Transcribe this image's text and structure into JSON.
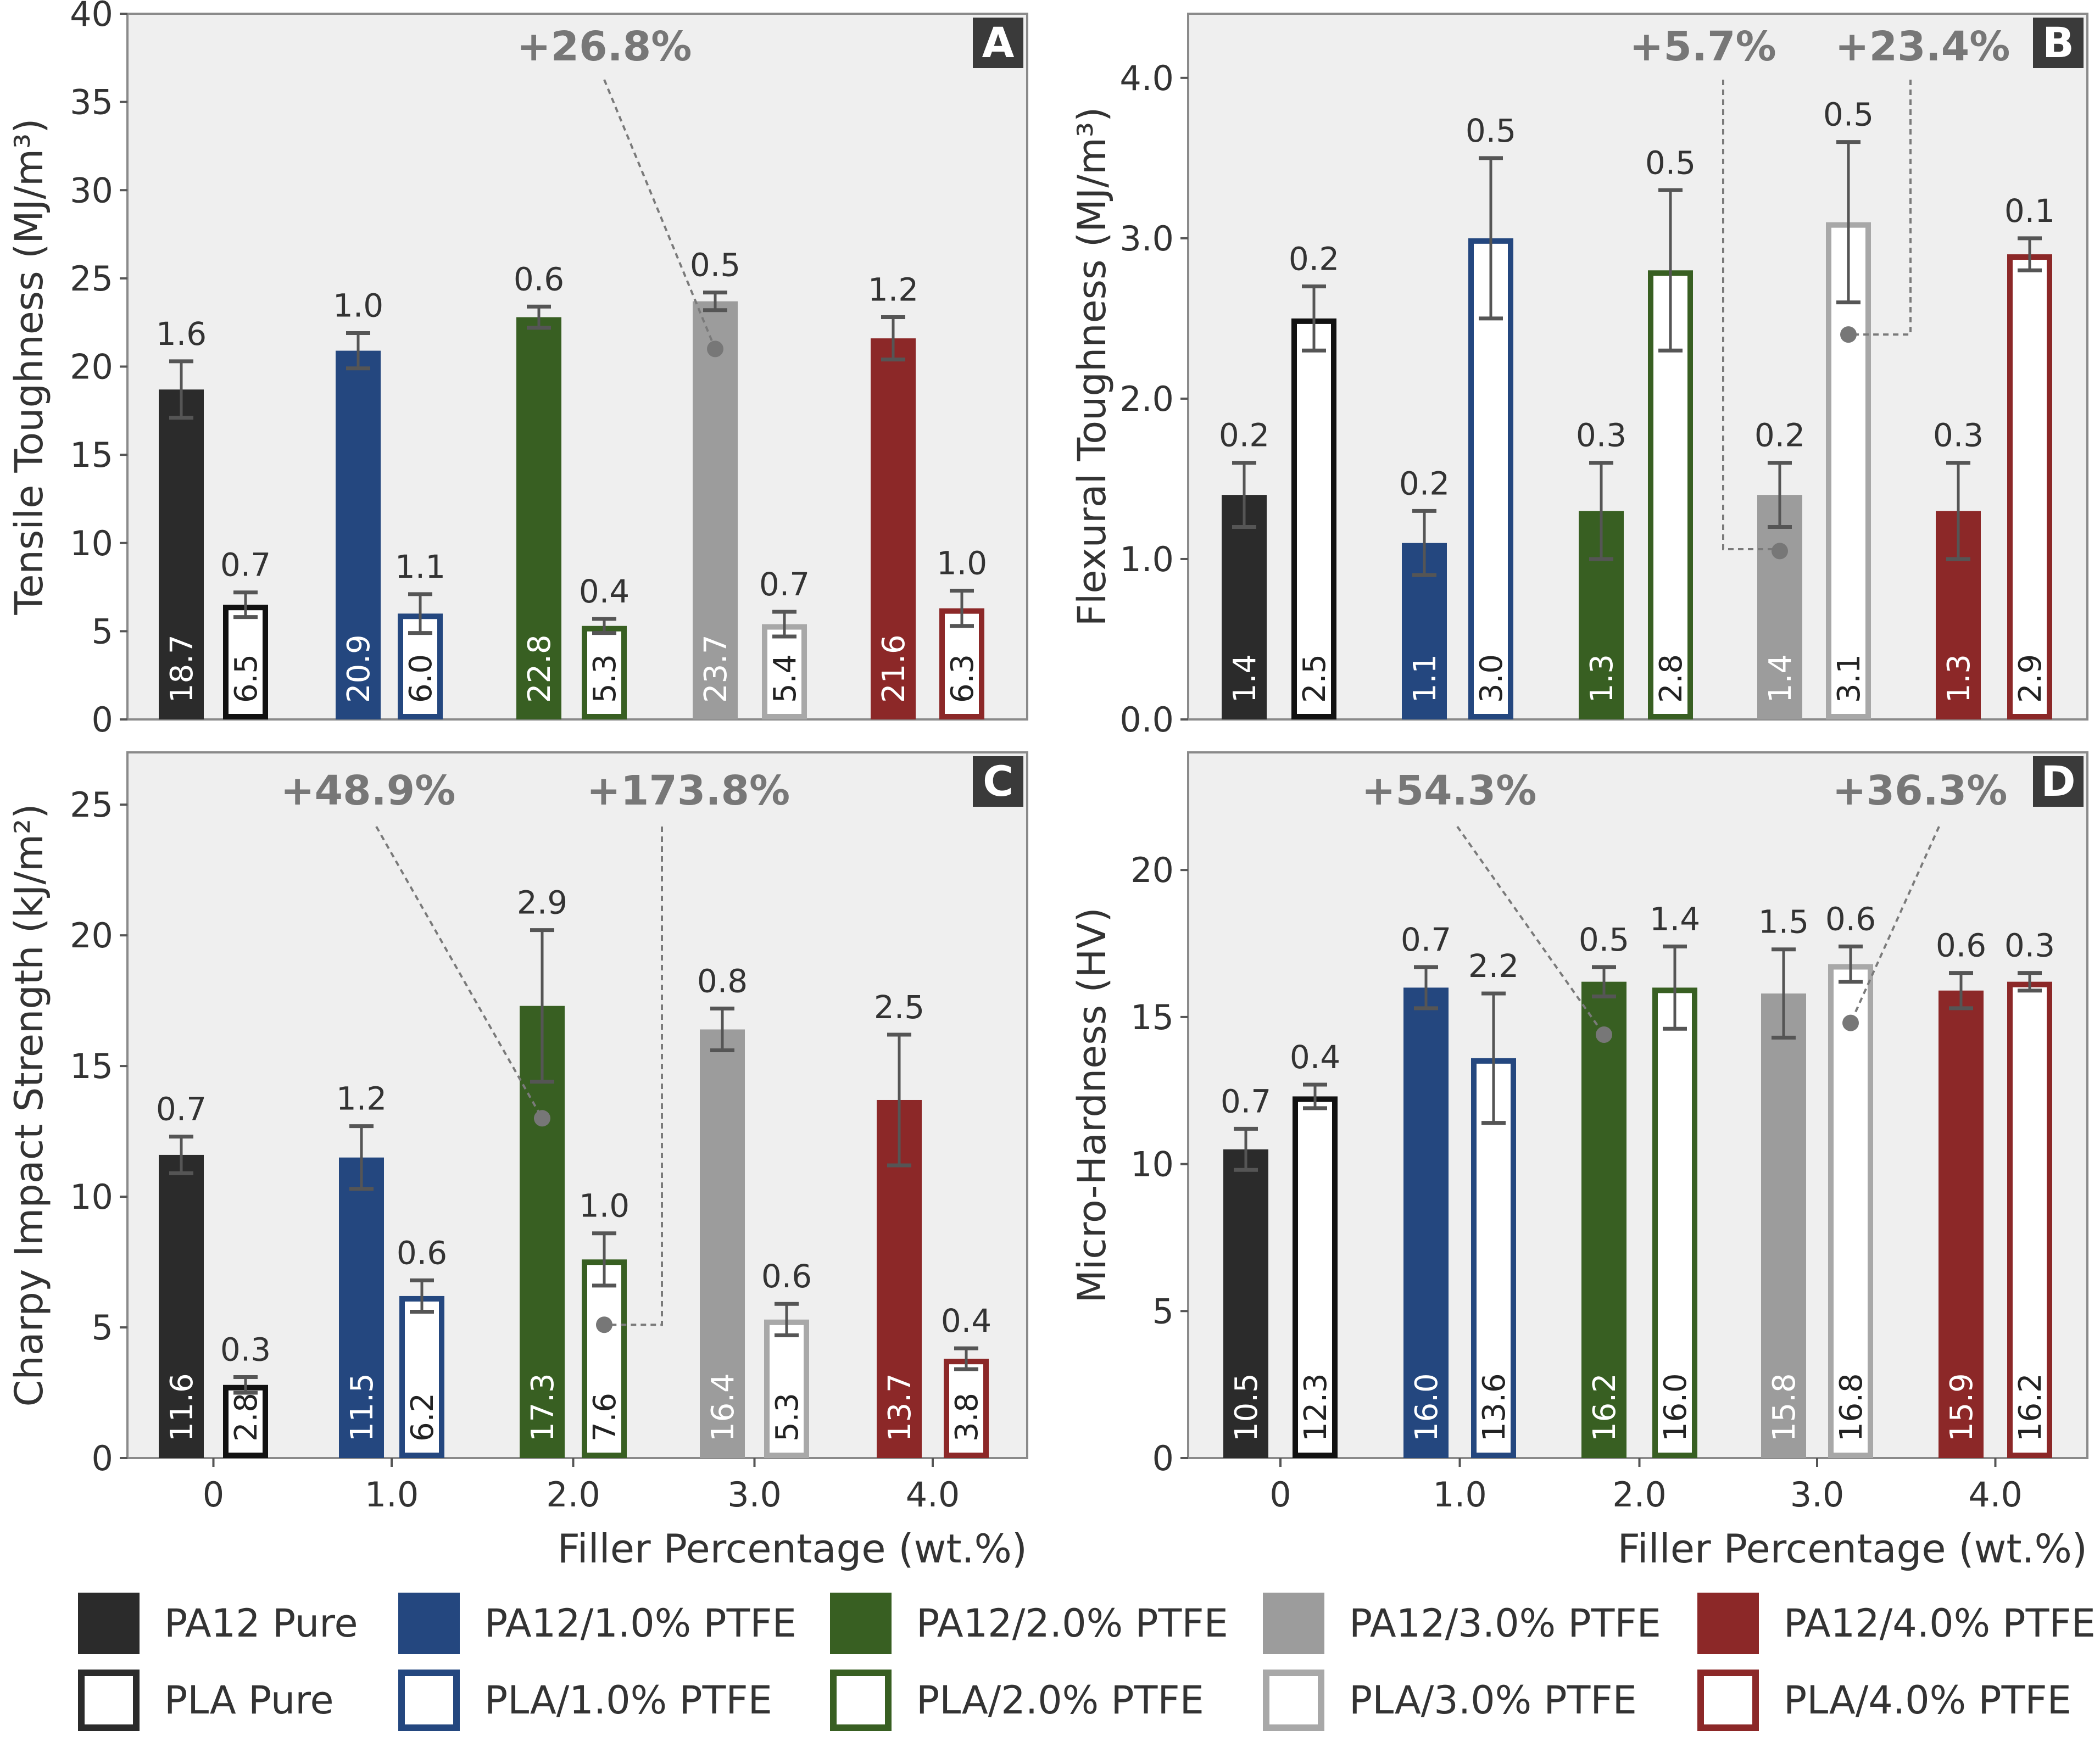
{
  "figure": {
    "x_common_label": "Filler Percentage (wt.%)",
    "legend": [
      {
        "label": "PA12 Pure",
        "style": "filled",
        "color": "#2b2b2b"
      },
      {
        "label": "PA12/1.0% PTFE",
        "style": "filled",
        "color": "#24477f"
      },
      {
        "label": "PA12/2.0% PTFE",
        "style": "filled",
        "color": "#385f22"
      },
      {
        "label": "PA12/3.0% PTFE",
        "style": "filled",
        "color": "#9c9c9c"
      },
      {
        "label": "PA12/4.0% PTFE",
        "style": "filled",
        "color": "#8c2828"
      },
      {
        "label": "PLA Pure",
        "style": "outline",
        "color": "#2b2b2b"
      },
      {
        "label": "PLA/1.0% PTFE",
        "style": "outline",
        "color": "#24477f"
      },
      {
        "label": "PLA/2.0% PTFE",
        "style": "outline",
        "color": "#385f22"
      },
      {
        "label": "PLA/3.0% PTFE",
        "style": "outline",
        "color": "#a8a8a8"
      },
      {
        "label": "PLA/4.0% PTFE",
        "style": "outline",
        "color": "#8c2828"
      }
    ]
  },
  "chart_data": [
    {
      "panel": "A",
      "type": "bar",
      "ylabel": "Tensile Toughness (MJ/m³)",
      "xlabel": "",
      "ylim": [
        0,
        40
      ],
      "yticks": [
        "0",
        "5",
        "10",
        "15",
        "20",
        "25",
        "30",
        "35",
        "40"
      ],
      "categories": [
        "0",
        "1.0",
        "2.0",
        "3.0",
        "4.0"
      ],
      "show_xticks": false,
      "series": [
        {
          "name": "PA12",
          "values": [
            18.7,
            20.9,
            22.8,
            23.7,
            21.6
          ],
          "labels": [
            "18.7",
            "20.9",
            "22.8",
            "23.7",
            "21.6"
          ],
          "errors": [
            1.6,
            1.0,
            0.6,
            0.5,
            1.2
          ],
          "error_labels": [
            "1.6",
            "1.0",
            "0.6",
            "0.5",
            "1.2"
          ]
        },
        {
          "name": "PLA",
          "values": [
            6.5,
            6.0,
            5.3,
            5.4,
            6.3
          ],
          "labels": [
            "6.5",
            "6.0",
            "5.3",
            "5.4",
            "6.3"
          ],
          "errors": [
            0.7,
            1.1,
            0.4,
            0.7,
            1.0
          ],
          "error_labels": [
            "0.7",
            "1.1",
            "0.4",
            "0.7",
            "1.0"
          ]
        }
      ],
      "annotations": [
        {
          "text": "+26.8%",
          "target": {
            "series": 0,
            "category": 3,
            "value": 21
          }
        }
      ]
    },
    {
      "panel": "B",
      "type": "bar",
      "ylabel": "Flexural Toughness (MJ/m³)",
      "xlabel": "",
      "ylim": [
        0,
        4.4
      ],
      "yticks": [
        "0.0",
        "1.0",
        "2.0",
        "3.0",
        "4.0"
      ],
      "categories": [
        "0",
        "1.0",
        "2.0",
        "3.0",
        "4.0"
      ],
      "show_xticks": false,
      "series": [
        {
          "name": "PA12",
          "values": [
            1.4,
            1.1,
            1.3,
            1.4,
            1.3
          ],
          "labels": [
            "1.4",
            "1.1",
            "1.3",
            "1.4",
            "1.3"
          ],
          "errors": [
            0.2,
            0.2,
            0.3,
            0.2,
            0.3
          ],
          "error_labels": [
            "0.2",
            "0.2",
            "0.3",
            "0.2",
            "0.3"
          ]
        },
        {
          "name": "PLA",
          "values": [
            2.5,
            3.0,
            2.8,
            3.1,
            2.9
          ],
          "labels": [
            "2.5",
            "3.0",
            "2.8",
            "3.1",
            "2.9"
          ],
          "errors": [
            0.2,
            0.5,
            0.5,
            0.5,
            0.1
          ],
          "error_labels": [
            "0.2",
            "0.5",
            "0.5",
            "0.5",
            "0.1"
          ]
        }
      ],
      "annotations": [
        {
          "text": "+5.7%",
          "target": {
            "series": 0,
            "category": 3,
            "value": 1.05
          }
        },
        {
          "text": "+23.4%",
          "target": {
            "series": 1,
            "category": 3,
            "value": 2.4
          }
        }
      ]
    },
    {
      "panel": "C",
      "type": "bar",
      "ylabel": "Charpy Impact Strength (kJ/m²)",
      "xlabel": "Filler Percentage (wt.%)",
      "ylim": [
        0,
        27
      ],
      "yticks": [
        "0",
        "5",
        "10",
        "15",
        "20",
        "25"
      ],
      "categories": [
        "0",
        "1.0",
        "2.0",
        "3.0",
        "4.0"
      ],
      "show_xticks": true,
      "series": [
        {
          "name": "PA12",
          "values": [
            11.6,
            11.5,
            17.3,
            16.4,
            13.7
          ],
          "labels": [
            "11.6",
            "11.5",
            "17.3",
            "16.4",
            "13.7"
          ],
          "errors": [
            0.7,
            1.2,
            2.9,
            0.8,
            2.5
          ],
          "error_labels": [
            "0.7",
            "1.2",
            "2.9",
            "0.8",
            "2.5"
          ]
        },
        {
          "name": "PLA",
          "values": [
            2.8,
            6.2,
            7.6,
            5.3,
            3.8
          ],
          "labels": [
            "2.8",
            "6.2",
            "7.6",
            "5.3",
            "3.8"
          ],
          "errors": [
            0.3,
            0.6,
            1.0,
            0.6,
            0.4
          ],
          "error_labels": [
            "0.3",
            "0.6",
            "1.0",
            "0.6",
            "0.4"
          ]
        }
      ],
      "annotations": [
        {
          "text": "+48.9%",
          "target": {
            "series": 0,
            "category": 2,
            "value": 13
          }
        },
        {
          "text": "+173.8%",
          "target": {
            "series": 1,
            "category": 2,
            "value": 5.1
          }
        }
      ]
    },
    {
      "panel": "D",
      "type": "bar",
      "ylabel": "Micro-Hardness (HV)",
      "xlabel": "Filler Percentage (wt.%)",
      "ylim": [
        0,
        24
      ],
      "yticks": [
        "0",
        "5",
        "10",
        "15",
        "20"
      ],
      "categories": [
        "0",
        "1.0",
        "2.0",
        "3.0",
        "4.0"
      ],
      "show_xticks": true,
      "series": [
        {
          "name": "PA12",
          "values": [
            10.5,
            16.0,
            16.2,
            15.8,
            15.9
          ],
          "labels": [
            "10.5",
            "16.0",
            "16.2",
            "15.8",
            "15.9"
          ],
          "errors": [
            0.7,
            0.7,
            0.5,
            1.5,
            0.6
          ],
          "error_labels": [
            "0.7",
            "0.7",
            "0.5",
            "1.5",
            "0.6"
          ]
        },
        {
          "name": "PLA",
          "values": [
            12.3,
            13.6,
            16.0,
            16.8,
            16.2
          ],
          "labels": [
            "12.3",
            "13.6",
            "16.0",
            "16.8",
            "16.2"
          ],
          "errors": [
            0.4,
            2.2,
            1.4,
            0.6,
            0.3
          ],
          "error_labels": [
            "0.4",
            "2.2",
            "1.4",
            "0.6",
            "0.3"
          ]
        }
      ],
      "annotations": [
        {
          "text": "+54.3%",
          "target": {
            "series": 0,
            "category": 2,
            "value": 14.4
          }
        },
        {
          "text": "+36.3%",
          "target": {
            "series": 1,
            "category": 3,
            "value": 14.8
          }
        }
      ]
    }
  ]
}
